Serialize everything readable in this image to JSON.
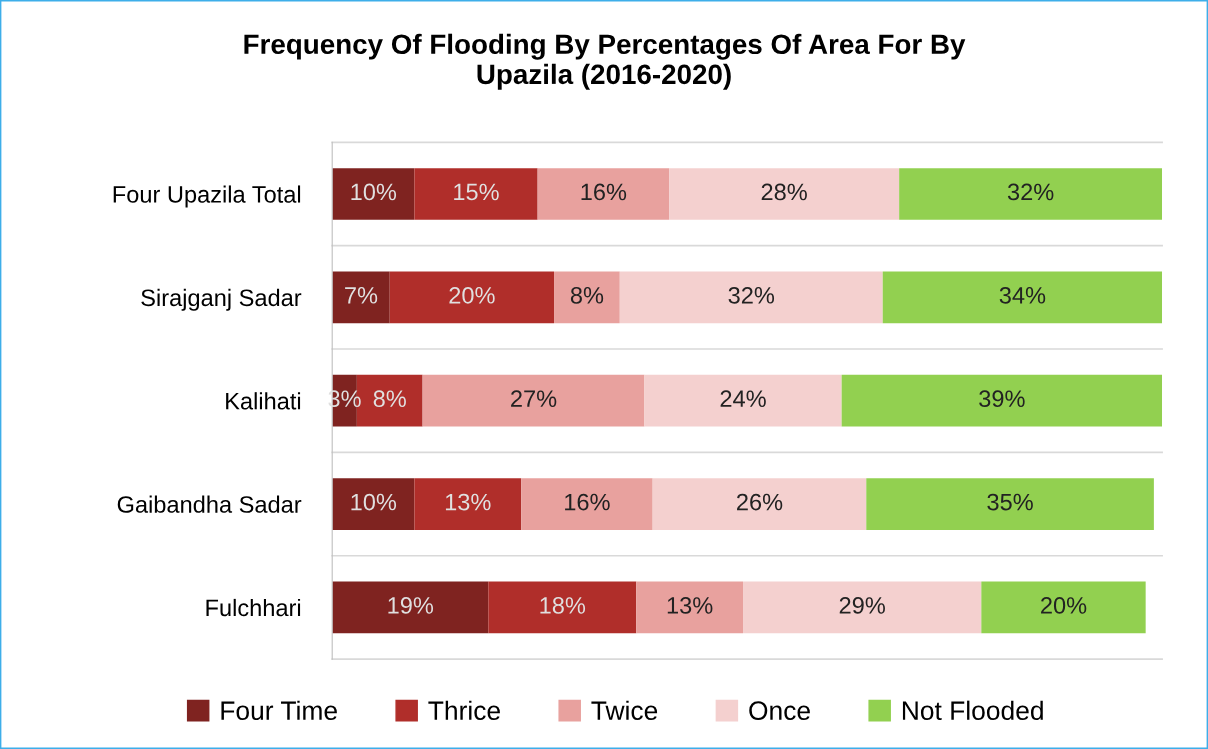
{
  "chart_data": {
    "type": "bar",
    "orientation": "horizontal",
    "stacked": true,
    "title": "Frequency Of Flooding By Percentages Of Area For By\nUpazila (2016-2020)",
    "categories": [
      "Four Upazila Total",
      "Sirajganj Sadar",
      "Kalihati",
      "Gaibandha Sadar",
      "Fulchhari"
    ],
    "series": [
      {
        "name": "Four Time",
        "color": "#7f2320",
        "values": [
          10,
          7,
          3,
          10,
          19
        ],
        "value_labels": [
          "10%",
          "7%",
          "3%",
          "10%",
          "19%"
        ]
      },
      {
        "name": "Thrice",
        "color": "#b02e2a",
        "values": [
          15,
          20,
          8,
          13,
          18
        ],
        "value_labels": [
          "15%",
          "20%",
          "8%",
          "13%",
          "18%"
        ]
      },
      {
        "name": "Twice",
        "color": "#e8a19e",
        "values": [
          16,
          8,
          27,
          16,
          13
        ],
        "value_labels": [
          "16%",
          "8%",
          "27%",
          "16%",
          "13%"
        ]
      },
      {
        "name": "Once",
        "color": "#f4d0cf",
        "values": [
          28,
          32,
          24,
          26,
          29
        ],
        "value_labels": [
          "28%",
          "32%",
          "24%",
          "26%",
          "29%"
        ]
      },
      {
        "name": "Not Flooded",
        "color": "#92d050",
        "values": [
          32,
          34,
          39,
          35,
          20
        ],
        "value_labels": [
          "32%",
          "34%",
          "39%",
          "35%",
          "20%"
        ]
      }
    ],
    "grid": "y",
    "legend": "bottom"
  }
}
